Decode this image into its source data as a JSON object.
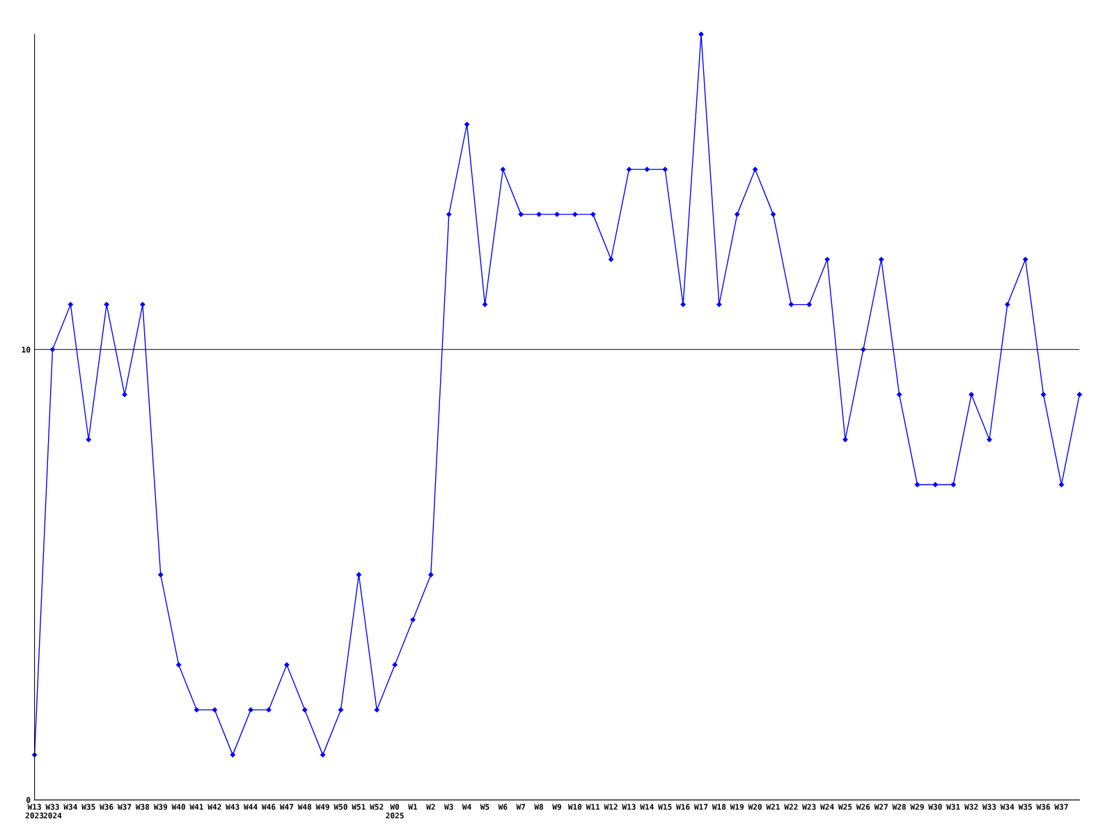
{
  "chart_data": {
    "type": "line",
    "categories": [
      "W13\n2023",
      "W33\n2024",
      "W34",
      "W35",
      "W36",
      "W37",
      "W38",
      "W39",
      "W40",
      "W41",
      "W42",
      "W43",
      "W44",
      "W46",
      "W47",
      "W48",
      "W49",
      "W50",
      "W51",
      "W52",
      "W0\n2025",
      "W1",
      "W2",
      "W3",
      "W4",
      "W5",
      "W6",
      "W7",
      "W8",
      "W9",
      "W10",
      "W11",
      "W12",
      "W13",
      "W14",
      "W15",
      "W16",
      "W17",
      "W18",
      "W19",
      "W20",
      "W21",
      "W22",
      "W23",
      "W24",
      "W25",
      "W26",
      "W27",
      "W28",
      "W29",
      "W30",
      "W31",
      "W32",
      "W33",
      "W34",
      "W35",
      "W36",
      "W37",
      null
    ],
    "series": [
      {
        "color": "#0000ff",
        "values": [
          1,
          10,
          11,
          8,
          11,
          9,
          11,
          5,
          3,
          2,
          2,
          1,
          2,
          2,
          3,
          2,
          1,
          2,
          5,
          2,
          3,
          4,
          5,
          13,
          15,
          11,
          14,
          13,
          13,
          13,
          13,
          13,
          12,
          14,
          14,
          14,
          11,
          17,
          11,
          13,
          14,
          13,
          11,
          11,
          12,
          8,
          10,
          12,
          9,
          7,
          7,
          7,
          9,
          8,
          11,
          12,
          9,
          7,
          9
        ]
      }
    ],
    "ylim": [
      0,
      17
    ],
    "yticks": [
      0,
      10
    ],
    "grid": "y",
    "marker": "diamond",
    "line_style": "solid"
  }
}
